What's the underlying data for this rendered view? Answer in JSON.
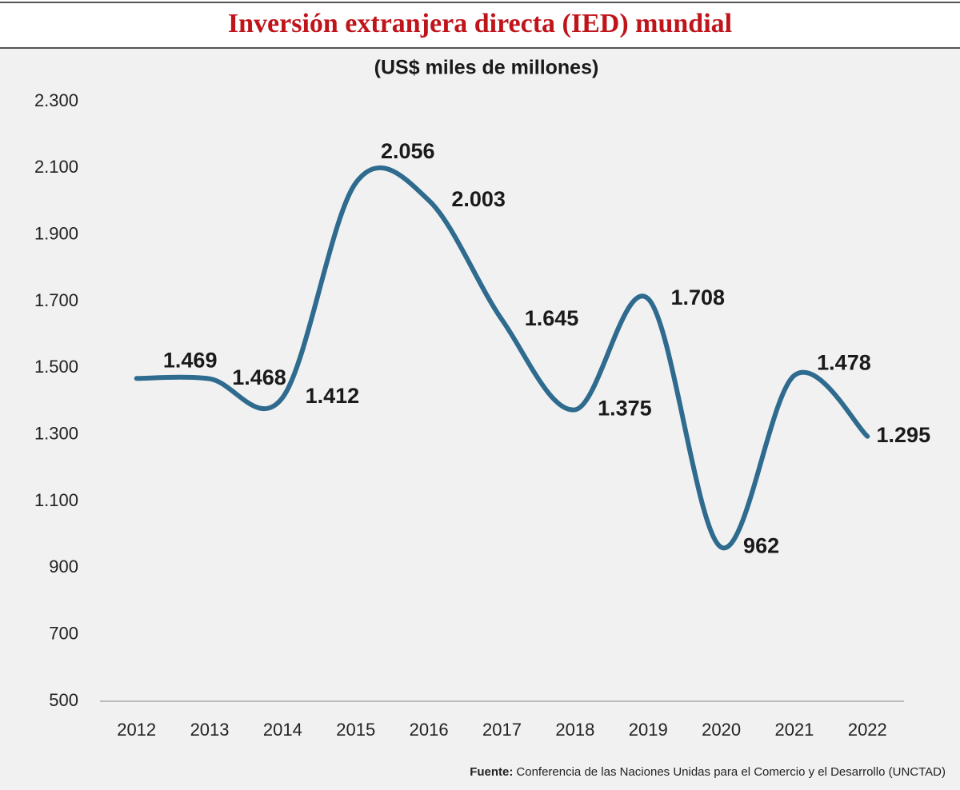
{
  "chart_data": {
    "type": "line",
    "title": "Inversión extranjera directa (IED) mundial",
    "subtitle": "(US$ miles de millones)",
    "categories": [
      "2012",
      "2013",
      "2014",
      "2015",
      "2016",
      "2017",
      "2018",
      "2019",
      "2020",
      "2021",
      "2022"
    ],
    "values": [
      1469,
      1468,
      1412,
      2056,
      2003,
      1645,
      1375,
      1708,
      962,
      1478,
      1295
    ],
    "value_labels": [
      "1.469",
      "1.468",
      "1.412",
      "2.056",
      "2.003",
      "1.645",
      "1.375",
      "1.708",
      "962",
      "1.478",
      "1.295"
    ],
    "color": "#2e6b8e",
    "ylim": [
      500,
      2300
    ],
    "yticks": [
      500,
      700,
      900,
      {
        "value": 1100,
        "label": "1.100"
      },
      {
        "value": 1300,
        "label": "1.300"
      },
      {
        "value": 1500,
        "label": "1.500"
      },
      {
        "value": 1700,
        "label": "1.700"
      },
      {
        "value": 1900,
        "label": "1.900"
      },
      {
        "value": 2100,
        "label": "2.100"
      },
      {
        "value": 2300,
        "label": "2.300"
      }
    ],
    "grid": false,
    "source_label": "Fuente:",
    "source": "Conferencia de las Naciones Unidas para el Comercio y el Desarrollo (UNCTAD)"
  }
}
